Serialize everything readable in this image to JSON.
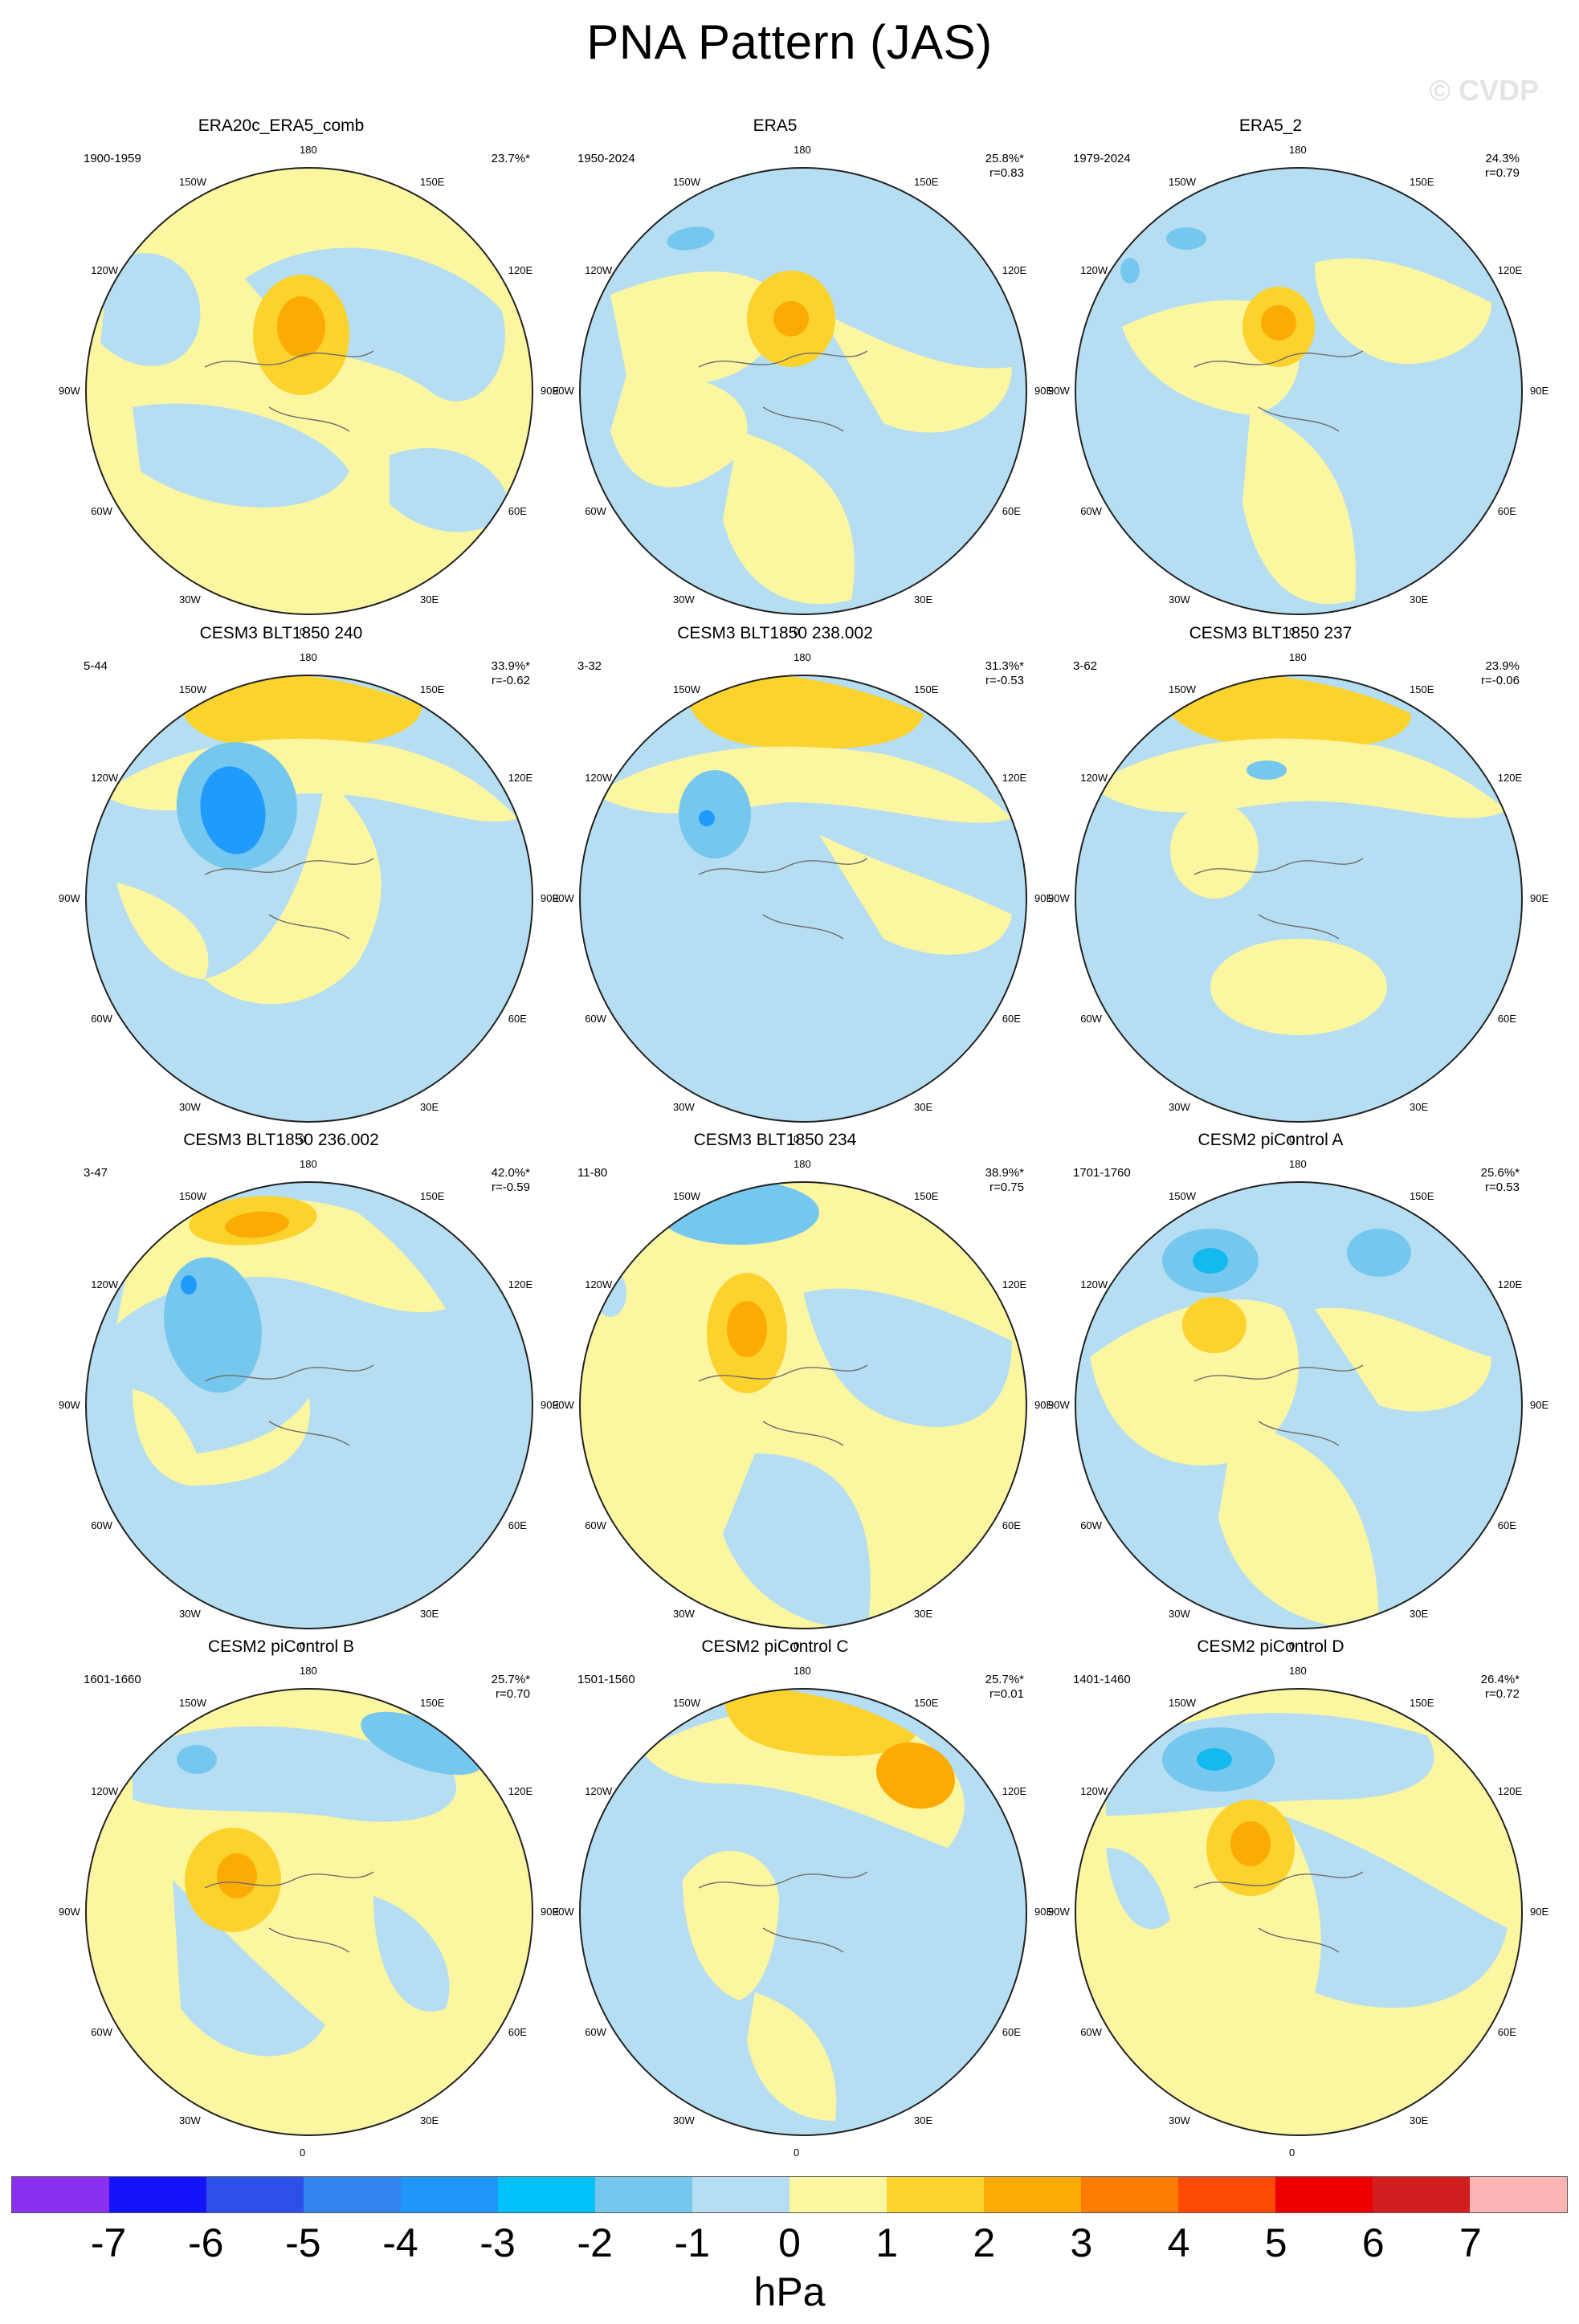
{
  "title": "PNA Pattern (JAS)",
  "watermark": "© CVDP",
  "colors": {
    "neg1": "#b6def2",
    "neg2": "#76c7ee",
    "neg3": "#14b9f0",
    "neg4": "#1f9bfd",
    "pos1": "#fcf6a0",
    "pos2": "#fcd22c",
    "pos3": "#fcaa04",
    "coast": "#6e6e6e",
    "border": "#222222"
  },
  "lon_labels": [
    "180",
    "150E",
    "120E",
    "90E",
    "60E",
    "30E",
    "0",
    "30W",
    "60W",
    "90W",
    "120W",
    "150W"
  ],
  "panels": [
    {
      "title": "ERA20c_ERA5_comb",
      "period": "1900-1959",
      "pct": "23.7%*",
      "r": "",
      "pattern": "era20"
    },
    {
      "title": "ERA5",
      "period": "1950-2024",
      "pct": "25.8%*",
      "r": "r=0.83",
      "pattern": "era5"
    },
    {
      "title": "ERA5_2",
      "period": "1979-2024",
      "pct": "24.3%",
      "r": "r=0.79",
      "pattern": "era52"
    },
    {
      "title": "CESM3 BLT1850 240",
      "period": "5-44",
      "pct": "33.9%*",
      "r": "r=-0.62",
      "pattern": "neg_a"
    },
    {
      "title": "CESM3 BLT1850 238.002",
      "period": "3-32",
      "pct": "31.3%*",
      "r": "r=-0.53",
      "pattern": "neg_b"
    },
    {
      "title": "CESM3 BLT1850 237",
      "period": "3-62",
      "pct": "23.9%",
      "r": "r=-0.06",
      "pattern": "neu"
    },
    {
      "title": "CESM3 BLT1850 236.002",
      "period": "3-47",
      "pct": "42.0%*",
      "r": "r=-0.59",
      "pattern": "neg_c"
    },
    {
      "title": "CESM3 BLT1850 234",
      "period": "11-80",
      "pct": "38.9%*",
      "r": "r=0.75",
      "pattern": "pos_a"
    },
    {
      "title": "CESM2 piControl A",
      "period": "1701-1760",
      "pct": "25.6%*",
      "r": "r=0.53",
      "pattern": "pos_b"
    },
    {
      "title": "CESM2 piControl B",
      "period": "1601-1660",
      "pct": "25.7%*",
      "r": "r=0.70",
      "pattern": "pos_c"
    },
    {
      "title": "CESM2 piControl C",
      "period": "1501-1560",
      "pct": "25.7%*",
      "r": "r=0.01",
      "pattern": "mix"
    },
    {
      "title": "CESM2 piControl D",
      "period": "1401-1460",
      "pct": "26.4%*",
      "r": "r=0.72",
      "pattern": "pos_d"
    }
  ],
  "colorbar": {
    "colors": [
      "#8c30f0",
      "#1414fa",
      "#2c50e8",
      "#3282f0",
      "#1e96fa",
      "#00c2fb",
      "#76c7ee",
      "#b6def2",
      "#fcf6a0",
      "#fcd22c",
      "#fcaa04",
      "#fc7c04",
      "#fc4a04",
      "#ec0000",
      "#d21e1e",
      "#fcb4b4"
    ],
    "labels": [
      "-7",
      "-6",
      "-5",
      "-4",
      "-3",
      "-2",
      "-1",
      "0",
      "1",
      "2",
      "3",
      "4",
      "5",
      "6",
      "7"
    ],
    "units": "hPa"
  }
}
